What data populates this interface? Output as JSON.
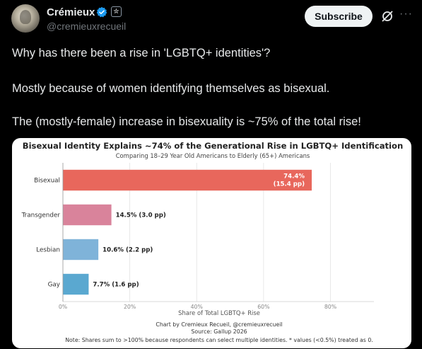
{
  "author": {
    "name": "Crémieux",
    "handle": "@cremieuxrecueil",
    "affiliate_badge": "✮"
  },
  "actions": {
    "subscribe_label": "Subscribe",
    "more_label": "···"
  },
  "post": {
    "line1": "Why has there been a rise in 'LGBTQ+ identities'?",
    "line2": "Mostly because of women identifying themselves as bisexual.",
    "line3": "The (mostly-female) increase in bisexuality is ~75% of the total rise!"
  },
  "colors": {
    "accent_blue": "#1d9bf0",
    "bisexual": "#e8675c",
    "transgender": "#d9839b",
    "lesbian": "#7fb3d9",
    "gay": "#5aa8d0"
  },
  "chart_data": {
    "type": "bar",
    "orientation": "horizontal",
    "title": "Bisexual Identity Explains ~74% of the Generational Rise in LGBTQ+ Identification",
    "subtitle": "Comparing 18–29 Year Old Americans to Elderly (65+) Americans",
    "xlabel": "Share of Total LGBTQ+ Rise",
    "xlim": [
      0,
      93
    ],
    "xticks": [
      "0%",
      "20%",
      "40%",
      "60%",
      "80%"
    ],
    "xtick_values": [
      0,
      20,
      40,
      60,
      80
    ],
    "grid": "vertical",
    "categories": [
      "Bisexual",
      "Transgender",
      "Lesbian",
      "Gay"
    ],
    "values": [
      74.4,
      14.5,
      10.6,
      7.7
    ],
    "labels": [
      "74.4%",
      "14.5%  (3.0 pp)",
      "10.6%  (2.2 pp)",
      "7.7%  (1.6 pp)"
    ],
    "bisexual_label_line2": "(15.4 pp)",
    "credit": "Chart by Cremieux Recueil, @cremieuxrecueil",
    "source": "Source: Gallup 2026",
    "note": "Note: Shares sum to >100% because respondents can select multiple identities. * values (<0.5%) treated as 0."
  }
}
